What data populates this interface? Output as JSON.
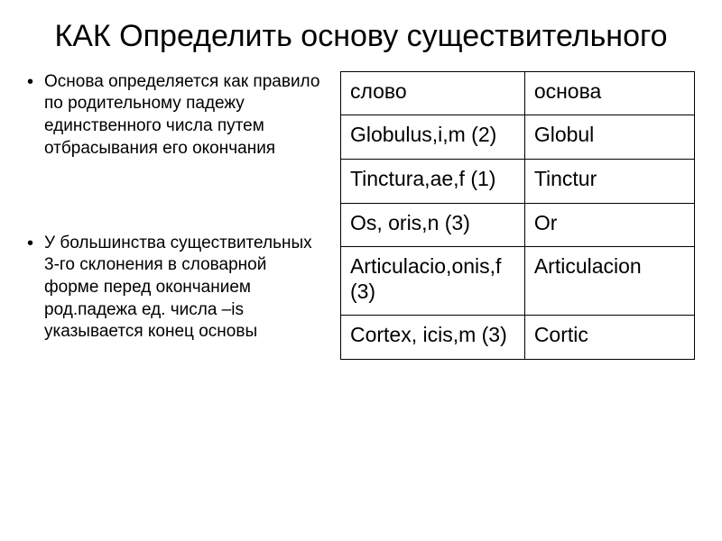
{
  "title": "КАК   Определить основу существительного",
  "bullets": [
    "Основа определяется как правило по родительному падежу единственного числа путем отбрасывания его окончания",
    "У большинства существительных 3-го склонения в словарной форме перед окончанием род.падежа ед. числа –is указывается конец основы"
  ],
  "table": {
    "columns": [
      "слово",
      "основа"
    ],
    "rows": [
      [
        "Globulus,i,m (2)",
        "Globul"
      ],
      [
        "Tinctura,ae,f (1)",
        " Tinctur"
      ],
      [
        "Os, oris,n (3)",
        "Or"
      ],
      [
        "Articulacio,onis,f (3)",
        "Articulacion"
      ],
      [
        "Cortex, icis,m (3)",
        "Cortic"
      ]
    ]
  },
  "colors": {
    "text": "#000000",
    "background": "#ffffff",
    "border": "#000000"
  },
  "fonts": {
    "title_size": 34,
    "body_size": 19,
    "table_size": 23
  }
}
